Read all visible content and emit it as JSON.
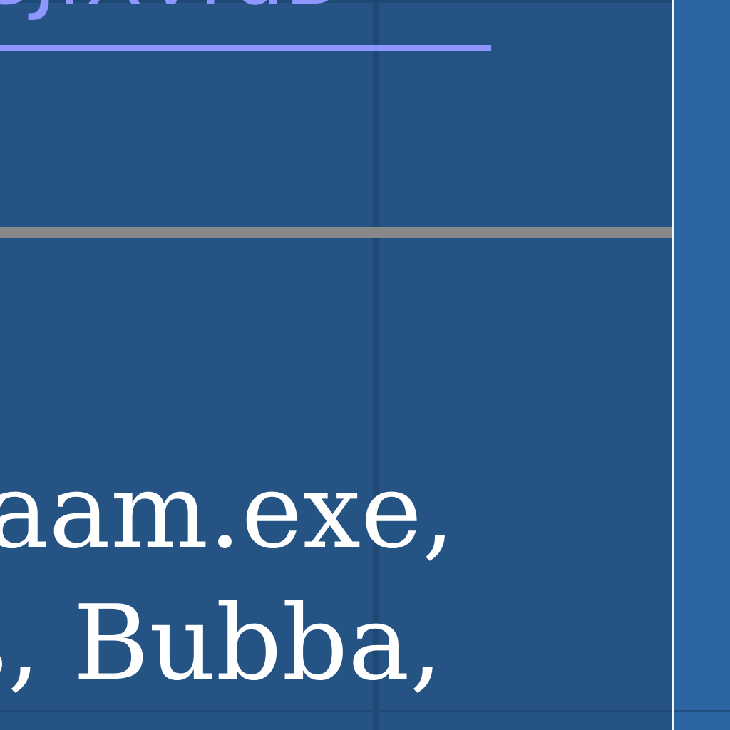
{
  "page": {
    "link": {
      "text": "SJfXVrdB"
    },
    "body_lines": [
      "aam.exe,",
      "s, Bubba,"
    ]
  },
  "colors": {
    "panel": "#255384",
    "right_strip": "#2d65a3",
    "link": "#8e96ff",
    "separator": "#888888",
    "text": "#ffffff"
  }
}
